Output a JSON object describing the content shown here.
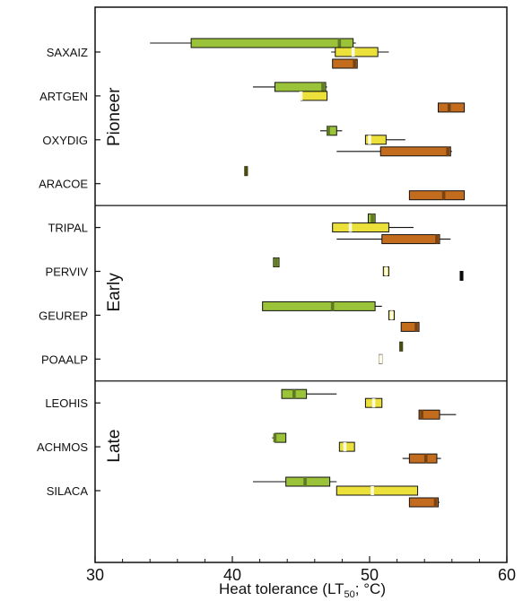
{
  "chart_data": {
    "type": "boxplot-horizontal",
    "xlabel_main": "Heat tolerance (LT",
    "xlabel_sub": "50",
    "xlabel_tail": "; °C)",
    "xlim": [
      30,
      60
    ],
    "xticks": [
      "30",
      "40",
      "50",
      "60"
    ],
    "colors": {
      "green": "#9bc33a",
      "yellow": "#ebe13a",
      "orange": "#c46c1e",
      "olive": "#7a7a14",
      "black": "#111111"
    },
    "groups": [
      {
        "label": "Pioneer",
        "species": [
          "SAXAIZ",
          "ARTGEN",
          "OXYDIG",
          "ARACOE"
        ]
      },
      {
        "label": "Early",
        "species": [
          "TRIPAL",
          "PERVIV",
          "GEUREP",
          "POAALP"
        ]
      },
      {
        "label": "Late",
        "species": [
          "LEOHIS",
          "ACHMOS",
          "SILACA"
        ]
      }
    ],
    "boxes": [
      {
        "species": "SAXAIZ",
        "level": "green",
        "whisker": [
          34.0,
          49.0
        ],
        "q1": 37.0,
        "median": 47.8,
        "q3": 48.8
      },
      {
        "species": "SAXAIZ",
        "level": "yellow",
        "whisker": [
          47.2,
          51.4
        ],
        "q1": 47.5,
        "median": 48.8,
        "q3": 50.6
      },
      {
        "species": "SAXAIZ",
        "level": "orange",
        "whisker": [
          47.3,
          49.1
        ],
        "q1": 47.3,
        "median": 48.9,
        "q3": 49.1
      },
      {
        "species": "ARTGEN",
        "level": "green",
        "whisker": [
          41.5,
          46.9
        ],
        "q1": 43.1,
        "median": 46.6,
        "q3": 46.8
      },
      {
        "species": "ARTGEN",
        "level": "yellow",
        "whisker": [
          45.0,
          46.9
        ],
        "q1": 45.0,
        "median": 45.0,
        "q3": 46.9
      },
      {
        "species": "ARTGEN",
        "level": "orange",
        "whisker": [
          55.0,
          56.9
        ],
        "q1": 55.0,
        "median": 55.8,
        "q3": 56.9
      },
      {
        "species": "OXYDIG",
        "level": "green",
        "whisker": [
          46.4,
          48.0
        ],
        "q1": 46.9,
        "median": 47.0,
        "q3": 47.6
      },
      {
        "species": "OXYDIG",
        "level": "yellow",
        "whisker": [
          49.7,
          52.6
        ],
        "q1": 49.7,
        "median": 50.0,
        "q3": 51.2
      },
      {
        "species": "OXYDIG",
        "level": "orange",
        "whisker": [
          47.6,
          56.0
        ],
        "q1": 50.8,
        "median": 55.7,
        "q3": 55.9
      },
      {
        "species": "ARACOE",
        "level": "olive",
        "whisker": [
          40.9,
          41.1
        ],
        "q1": 40.9,
        "median": 41.0,
        "q3": 41.1
      },
      {
        "species": "ARACOE",
        "level": "orange",
        "whisker": [
          52.9,
          56.9
        ],
        "q1": 52.9,
        "median": 55.4,
        "q3": 56.9
      },
      {
        "species": "TRIPAL",
        "level": "green",
        "whisker": [
          49.9,
          50.4
        ],
        "q1": 49.9,
        "median": 50.2,
        "q3": 50.4
      },
      {
        "species": "TRIPAL",
        "level": "yellow",
        "whisker": [
          47.3,
          53.2
        ],
        "q1": 47.3,
        "median": 48.6,
        "q3": 51.4
      },
      {
        "species": "TRIPAL",
        "level": "orange",
        "whisker": [
          47.6,
          55.9
        ],
        "q1": 50.9,
        "median": 54.9,
        "q3": 55.1
      },
      {
        "species": "PERVIV",
        "level": "green",
        "whisker": [
          43.0,
          43.4
        ],
        "q1": 43.0,
        "median": 43.2,
        "q3": 43.4
      },
      {
        "species": "PERVIV",
        "level": "yellow",
        "whisker": [
          51.0,
          51.4
        ],
        "q1": 51.0,
        "median": 51.2,
        "q3": 51.4
      },
      {
        "species": "PERVIV",
        "level": "black",
        "whisker": [
          56.6,
          56.8
        ],
        "q1": 56.6,
        "median": 56.7,
        "q3": 56.8
      },
      {
        "species": "GEUREP",
        "level": "green",
        "whisker": [
          42.2,
          50.9
        ],
        "q1": 42.2,
        "median": 47.3,
        "q3": 50.4
      },
      {
        "species": "GEUREP",
        "level": "yellow",
        "whisker": [
          51.4,
          51.8
        ],
        "q1": 51.4,
        "median": 51.6,
        "q3": 51.8
      },
      {
        "species": "GEUREP",
        "level": "orange",
        "whisker": [
          52.3,
          53.6
        ],
        "q1": 52.3,
        "median": 53.4,
        "q3": 53.6
      },
      {
        "species": "POAALP",
        "level": "olive",
        "whisker": [
          52.2,
          52.4
        ],
        "q1": 52.2,
        "median": 52.3,
        "q3": 52.4
      },
      {
        "species": "POAALP",
        "level": "yellow",
        "whisker": [
          50.7,
          50.9
        ],
        "q1": 50.7,
        "median": 50.8,
        "q3": 50.9
      },
      {
        "species": "LEOHIS",
        "level": "green",
        "whisker": [
          43.6,
          47.6
        ],
        "q1": 43.6,
        "median": 44.5,
        "q3": 45.4
      },
      {
        "species": "LEOHIS",
        "level": "yellow",
        "whisker": [
          49.7,
          50.9
        ],
        "q1": 49.7,
        "median": 50.3,
        "q3": 50.9
      },
      {
        "species": "LEOHIS",
        "level": "orange",
        "whisker": [
          53.6,
          56.3
        ],
        "q1": 53.6,
        "median": 53.8,
        "q3": 55.1
      },
      {
        "species": "ACHMOS",
        "level": "green",
        "whisker": [
          42.9,
          43.9
        ],
        "q1": 43.1,
        "median": 43.1,
        "q3": 43.9
      },
      {
        "species": "ACHMOS",
        "level": "yellow",
        "whisker": [
          47.8,
          48.9
        ],
        "q1": 47.8,
        "median": 48.2,
        "q3": 48.9
      },
      {
        "species": "ACHMOS",
        "level": "orange",
        "whisker": [
          52.4,
          55.2
        ],
        "q1": 52.9,
        "median": 54.1,
        "q3": 54.9
      },
      {
        "species": "SILACA",
        "level": "green",
        "whisker": [
          41.5,
          47.6
        ],
        "q1": 43.9,
        "median": 45.3,
        "q3": 47.1
      },
      {
        "species": "SILACA",
        "level": "yellow",
        "whisker": [
          47.6,
          53.5
        ],
        "q1": 47.6,
        "median": 50.2,
        "q3": 53.5
      },
      {
        "species": "SILACA",
        "level": "orange",
        "whisker": [
          52.9,
          55.1
        ],
        "q1": 52.9,
        "median": 54.8,
        "q3": 55.0
      }
    ]
  }
}
